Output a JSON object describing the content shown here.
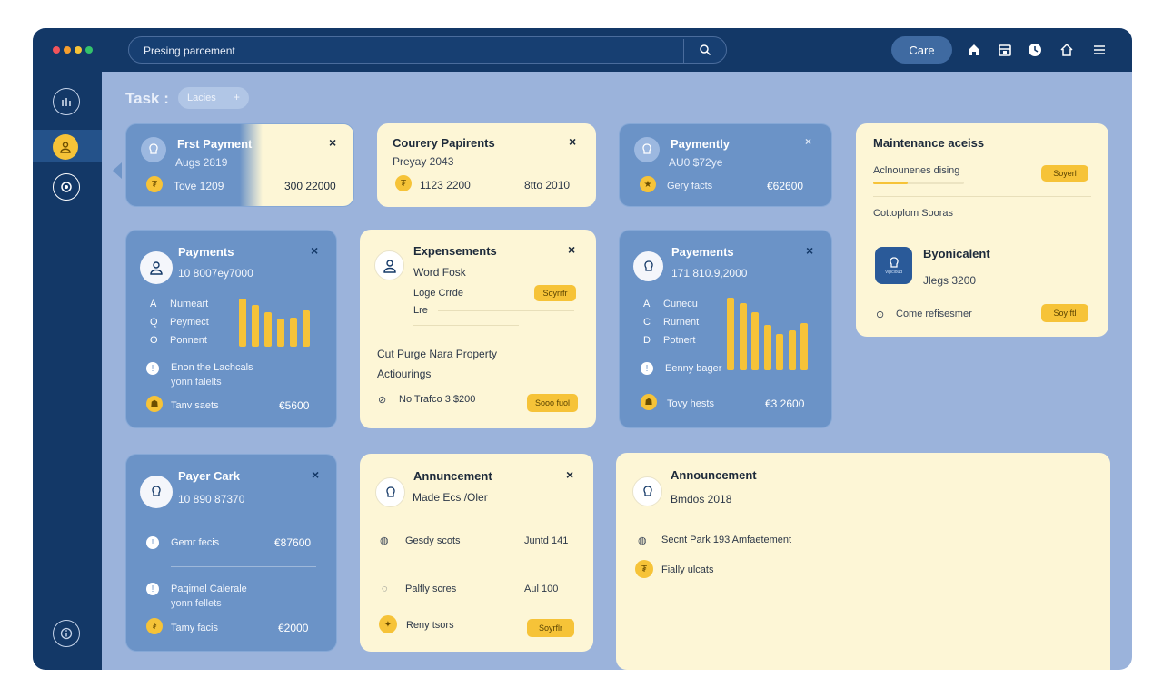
{
  "window": {
    "dot_colors": [
      "#f2545b",
      "#f59e2e",
      "#f6c338",
      "#33c26b"
    ]
  },
  "topbar": {
    "search_text": "Presing parcement",
    "care_label": "Care",
    "icons": [
      "search-icon",
      "home-icon",
      "calendar-icon",
      "clock-icon",
      "house-icon",
      "menu-icon"
    ]
  },
  "sidebar": {
    "icons": [
      "chart-icon",
      "user-icon",
      "target-icon",
      "info-icon"
    ]
  },
  "task": {
    "label": "Task :",
    "chip": "Lacies",
    "chip_plus": "+"
  },
  "cards": {
    "first_payment": {
      "title": "Frst Payment",
      "sub": "Augs 2819",
      "item": "Tove 1209",
      "amount": "300 22000"
    },
    "courery": {
      "title": "Courery Papirents",
      "sub": "Preyay 2043",
      "item": "1123 2200",
      "amount": "8tto 2010"
    },
    "paymently": {
      "title": "Paymently",
      "sub": "AU0 $72ye",
      "item": "Gery facts",
      "amount": "€62600"
    },
    "maintenance": {
      "title": "Maintenance aceiss",
      "row1": "Aclnounenes dising",
      "row1_btn": "Soyerl",
      "progress": 0.38,
      "row2": "Cottoplom Sooras",
      "app_title": "Byonicalent",
      "app_sub": "Jlegs 3200",
      "app_icon_label": "Vipcloud",
      "footer": "Come refisesmer",
      "footer_btn": "Soy ftl"
    },
    "payments1": {
      "title": "Payments",
      "sub": "10 8007ey7000",
      "legend": [
        {
          "k": "A",
          "v": "Numeart"
        },
        {
          "k": "Q",
          "v": "Peymect"
        },
        {
          "k": "O",
          "v": "Ponnent"
        }
      ],
      "bars": [
        0.95,
        0.82,
        0.68,
        0.55,
        0.58,
        0.72
      ],
      "note1": "Enon the Lachcals",
      "note2": "yonn falelts",
      "item": "Tanv saets",
      "amount": "€5600"
    },
    "expensements": {
      "title": "Expensements",
      "sub": "Word Fosk",
      "f1": "Loge Crrde",
      "f1_btn": "Soyrrfr",
      "f2": "Lre",
      "body1": "Cut Purge Nara Property",
      "body2": "Actiourings",
      "foot": "No Trafco 3 $200",
      "foot_btn": "Sooo fuol"
    },
    "payments2": {
      "title": "Payements",
      "sub": "171 810.9,2000",
      "legend": [
        {
          "k": "A",
          "v": "Cunecu"
        },
        {
          "k": "C",
          "v": "Rurnent"
        },
        {
          "k": "D",
          "v": "Potnert"
        }
      ],
      "bars": [
        1.0,
        0.92,
        0.8,
        0.62,
        0.5,
        0.55,
        0.65
      ],
      "note": "Eenny bager",
      "item": "Tovy hests",
      "amount": "€3 2600"
    },
    "payer_cark": {
      "title": "Payer Cark",
      "sub": "10 890 87370",
      "row1": "Gemr fecis",
      "row1_amount": "€87600",
      "note1": "Paqimel Calerale",
      "note2": "yonn fellets",
      "item": "Tamy facis",
      "amount": "€2000"
    },
    "announcement1": {
      "title": "Annuncement",
      "sub": "Made Ecs /Oler",
      "r1": "Gesdy scots",
      "r1v": "Juntd 141",
      "r2": "Palfly scres",
      "r2v": "Aul 100",
      "r3": "Reny tsors",
      "r3_btn": "Soyrflr"
    },
    "announcement2": {
      "title": "Announcement",
      "sub": "Bmdos 2018",
      "r1": "Secnt Park 193 Amfaetement",
      "r2": "Fially ulcats"
    }
  }
}
